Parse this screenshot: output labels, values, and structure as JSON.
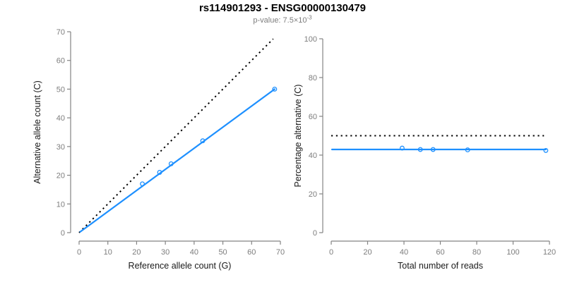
{
  "page": {
    "title": "rs114901293 - ENSG00000130479",
    "subtitle": {
      "prefix": "p-value: 7.5×10",
      "exponent": "-3",
      "full_text": "p-value: 7.5×10^-3"
    }
  },
  "colors": {
    "series": "#1E90FF",
    "reference_line": "#000000",
    "axis": "#848484",
    "tick_text": "#7d7d7d",
    "label_text": "#1a1a1a",
    "background": "#ffffff"
  },
  "chart_data": [
    {
      "id": "allele-counts-panel",
      "type": "scatter",
      "title": "",
      "xlabel": "Reference allele count (G)",
      "ylabel": "Alternative allele count (C)",
      "xlim": [
        0,
        70
      ],
      "ylim": [
        0,
        70
      ],
      "xticks": [
        0,
        10,
        20,
        30,
        40,
        50,
        60,
        70
      ],
      "yticks": [
        0,
        10,
        20,
        30,
        40,
        50,
        60,
        70
      ],
      "grid": false,
      "legend": null,
      "points": [
        [
          22,
          17
        ],
        [
          28,
          21
        ],
        [
          32,
          24
        ],
        [
          43,
          32
        ],
        [
          68,
          50
        ]
      ],
      "fit_line": {
        "style": "solid",
        "x1": 0.4,
        "y1": 0.3,
        "x2": 68,
        "y2": 50
      },
      "reference_line": {
        "style": "dotted",
        "x1": 0,
        "y1": 0,
        "x2": 67.5,
        "y2": 67.5
      }
    },
    {
      "id": "percentage-reads-panel",
      "type": "scatter",
      "title": "",
      "xlabel": "Total number of reads",
      "ylabel": "Percentage alternative (C)",
      "xlim": [
        0,
        120
      ],
      "ylim": [
        0,
        100
      ],
      "xticks": [
        0,
        20,
        40,
        60,
        80,
        100,
        120
      ],
      "yticks": [
        0,
        20,
        40,
        60,
        80,
        100
      ],
      "grid": false,
      "legend": null,
      "points": [
        [
          39,
          43.6
        ],
        [
          49,
          42.9
        ],
        [
          56,
          42.9
        ],
        [
          75,
          42.7
        ],
        [
          118,
          42.4
        ]
      ],
      "fit_line": {
        "style": "solid",
        "x1": 0.4,
        "y1": 42.9,
        "x2": 118,
        "y2": 42.9
      },
      "reference_line": {
        "style": "dotted",
        "x1": 0,
        "y1": 50,
        "x2": 117,
        "y2": 50
      }
    }
  ]
}
